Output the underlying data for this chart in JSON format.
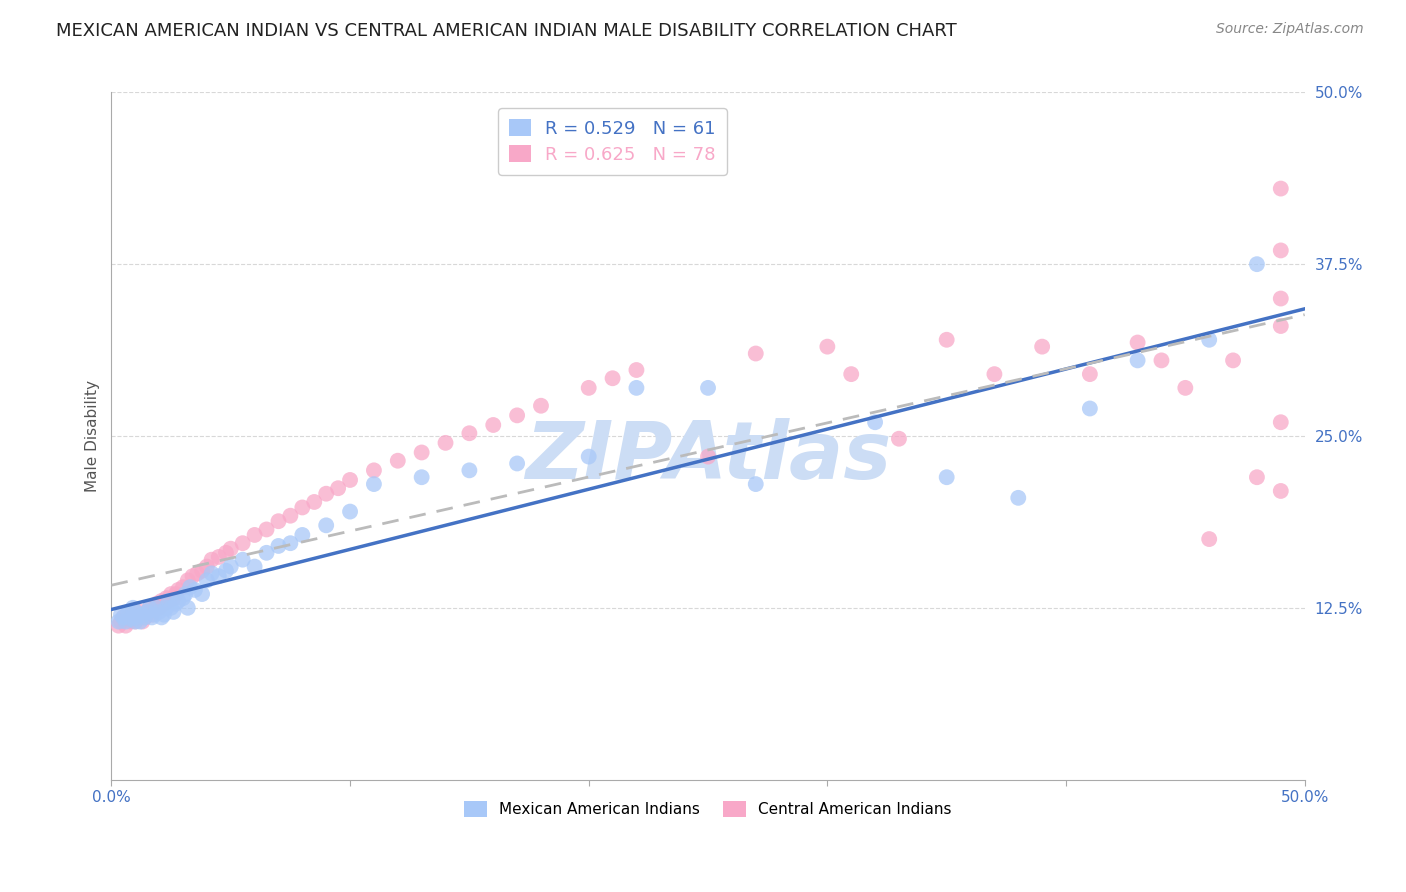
{
  "title": "MEXICAN AMERICAN INDIAN VS CENTRAL AMERICAN INDIAN MALE DISABILITY CORRELATION CHART",
  "source": "Source: ZipAtlas.com",
  "ylabel": "Male Disability",
  "xlim": [
    0.0,
    0.5
  ],
  "ylim": [
    0.0,
    0.5
  ],
  "watermark": "ZIPAtlas",
  "background_color": "#ffffff",
  "grid_color": "#d8d8d8",
  "tick_color": "#4472c4",
  "title_color": "#222222",
  "title_fontsize": 13,
  "source_fontsize": 10,
  "axis_label_fontsize": 11,
  "tick_fontsize": 11,
  "watermark_color": "#ccddf5",
  "watermark_fontsize": 58,
  "series_blue": {
    "R": 0.529,
    "N": 61,
    "color": "#a8c8f8",
    "line_color": "#4472c4",
    "line_style": "-",
    "x": [
      0.003,
      0.004,
      0.005,
      0.006,
      0.007,
      0.008,
      0.009,
      0.01,
      0.01,
      0.01,
      0.012,
      0.013,
      0.014,
      0.015,
      0.016,
      0.017,
      0.018,
      0.019,
      0.02,
      0.021,
      0.022,
      0.023,
      0.024,
      0.025,
      0.026,
      0.027,
      0.028,
      0.03,
      0.031,
      0.032,
      0.033,
      0.035,
      0.038,
      0.04,
      0.042,
      0.045,
      0.048,
      0.05,
      0.055,
      0.06,
      0.065,
      0.07,
      0.075,
      0.08,
      0.09,
      0.1,
      0.11,
      0.13,
      0.15,
      0.17,
      0.2,
      0.22,
      0.25,
      0.27,
      0.32,
      0.35,
      0.38,
      0.41,
      0.43,
      0.46,
      0.48
    ],
    "y": [
      0.115,
      0.12,
      0.118,
      0.115,
      0.122,
      0.117,
      0.125,
      0.115,
      0.118,
      0.122,
      0.115,
      0.12,
      0.118,
      0.122,
      0.125,
      0.118,
      0.12,
      0.125,
      0.122,
      0.118,
      0.12,
      0.125,
      0.13,
      0.125,
      0.122,
      0.128,
      0.13,
      0.132,
      0.135,
      0.125,
      0.14,
      0.138,
      0.135,
      0.145,
      0.15,
      0.148,
      0.152,
      0.155,
      0.16,
      0.155,
      0.165,
      0.17,
      0.172,
      0.178,
      0.185,
      0.195,
      0.215,
      0.22,
      0.225,
      0.23,
      0.235,
      0.285,
      0.285,
      0.215,
      0.26,
      0.22,
      0.205,
      0.27,
      0.305,
      0.32,
      0.375
    ]
  },
  "series_pink": {
    "R": 0.625,
    "N": 78,
    "color": "#f8a8c8",
    "line_color": "#bbbbbb",
    "line_style": "--",
    "x": [
      0.003,
      0.004,
      0.005,
      0.006,
      0.007,
      0.008,
      0.009,
      0.01,
      0.011,
      0.012,
      0.013,
      0.014,
      0.015,
      0.016,
      0.017,
      0.018,
      0.019,
      0.02,
      0.021,
      0.022,
      0.023,
      0.024,
      0.025,
      0.026,
      0.027,
      0.028,
      0.03,
      0.032,
      0.034,
      0.036,
      0.038,
      0.04,
      0.042,
      0.045,
      0.048,
      0.05,
      0.055,
      0.06,
      0.065,
      0.07,
      0.075,
      0.08,
      0.085,
      0.09,
      0.095,
      0.1,
      0.11,
      0.12,
      0.13,
      0.14,
      0.15,
      0.16,
      0.17,
      0.18,
      0.2,
      0.21,
      0.22,
      0.25,
      0.27,
      0.3,
      0.31,
      0.33,
      0.35,
      0.37,
      0.39,
      0.41,
      0.43,
      0.44,
      0.45,
      0.46,
      0.47,
      0.48,
      0.49,
      0.49,
      0.49,
      0.49,
      0.49,
      0.49
    ],
    "y": [
      0.112,
      0.115,
      0.118,
      0.112,
      0.118,
      0.115,
      0.12,
      0.115,
      0.118,
      0.122,
      0.115,
      0.118,
      0.122,
      0.125,
      0.12,
      0.125,
      0.128,
      0.125,
      0.13,
      0.128,
      0.132,
      0.13,
      0.135,
      0.132,
      0.135,
      0.138,
      0.14,
      0.145,
      0.148,
      0.15,
      0.152,
      0.155,
      0.16,
      0.162,
      0.165,
      0.168,
      0.172,
      0.178,
      0.182,
      0.188,
      0.192,
      0.198,
      0.202,
      0.208,
      0.212,
      0.218,
      0.225,
      0.232,
      0.238,
      0.245,
      0.252,
      0.258,
      0.265,
      0.272,
      0.285,
      0.292,
      0.298,
      0.235,
      0.31,
      0.315,
      0.295,
      0.248,
      0.32,
      0.295,
      0.315,
      0.295,
      0.318,
      0.305,
      0.285,
      0.175,
      0.305,
      0.22,
      0.35,
      0.33,
      0.26,
      0.21,
      0.385,
      0.43
    ]
  }
}
